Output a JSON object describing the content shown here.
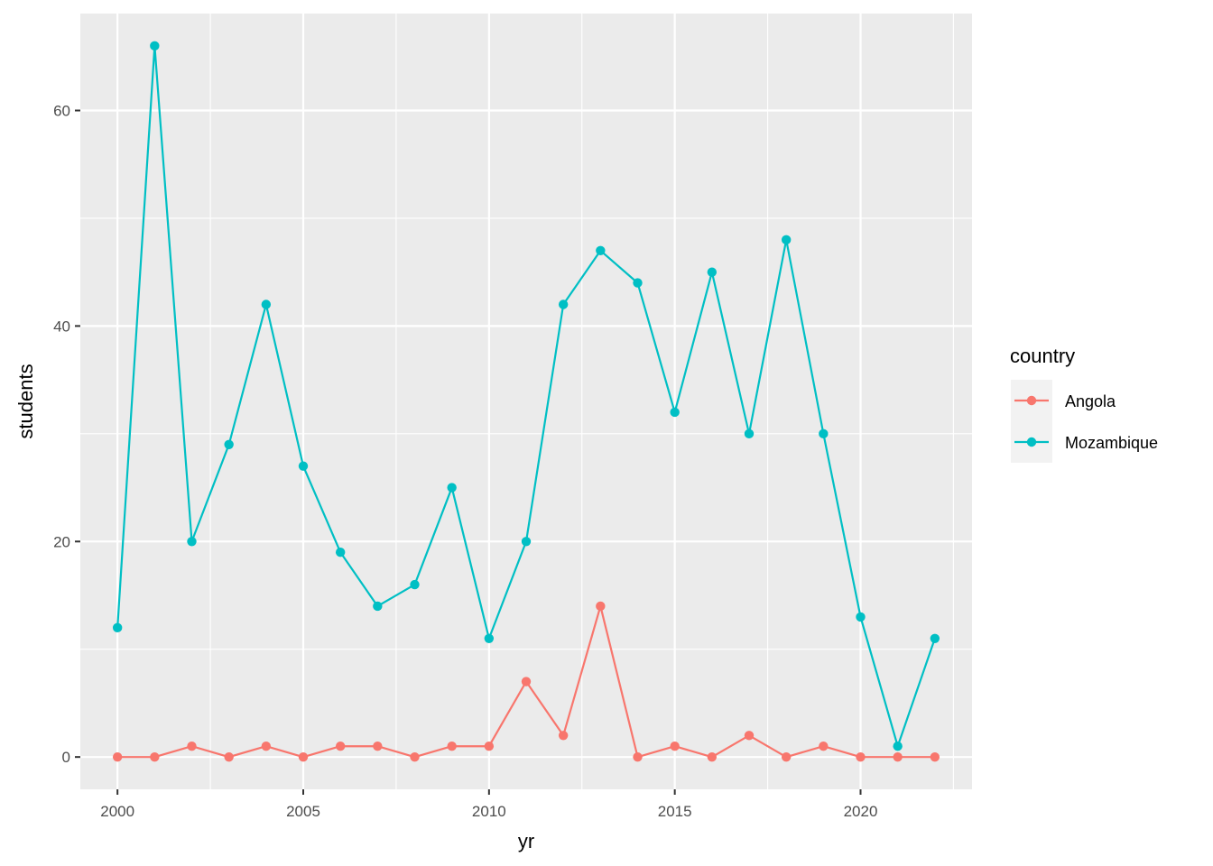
{
  "chart_data": {
    "type": "line",
    "xlabel": "yr",
    "ylabel": "students",
    "xlim": [
      1999,
      2023
    ],
    "ylim": [
      -3,
      69
    ],
    "x_major_ticks": [
      2000,
      2005,
      2010,
      2015,
      2020
    ],
    "x_minor_ticks": [
      2002.5,
      2007.5,
      2012.5,
      2017.5,
      2022.5
    ],
    "y_major_ticks": [
      0,
      20,
      40,
      60
    ],
    "y_minor_ticks": [
      10,
      30,
      50
    ],
    "grid": true,
    "legend": {
      "title": "country",
      "position": "right"
    },
    "x": [
      2000,
      2001,
      2002,
      2003,
      2004,
      2005,
      2006,
      2007,
      2008,
      2009,
      2010,
      2011,
      2012,
      2013,
      2014,
      2015,
      2016,
      2017,
      2018,
      2019,
      2020,
      2021,
      2022
    ],
    "series": [
      {
        "name": "Angola",
        "color": "#F8766D",
        "values": [
          0,
          0,
          1,
          0,
          1,
          0,
          1,
          1,
          0,
          1,
          1,
          7,
          2,
          14,
          0,
          1,
          0,
          2,
          0,
          1,
          0,
          0,
          0
        ]
      },
      {
        "name": "Mozambique",
        "color": "#00BFC4",
        "values": [
          12,
          66,
          20,
          29,
          42,
          27,
          19,
          14,
          16,
          25,
          11,
          20,
          42,
          47,
          44,
          32,
          45,
          30,
          48,
          30,
          13,
          1,
          11
        ]
      }
    ],
    "panel_background": "#EBEBEB",
    "grid_color": "#FFFFFF"
  }
}
